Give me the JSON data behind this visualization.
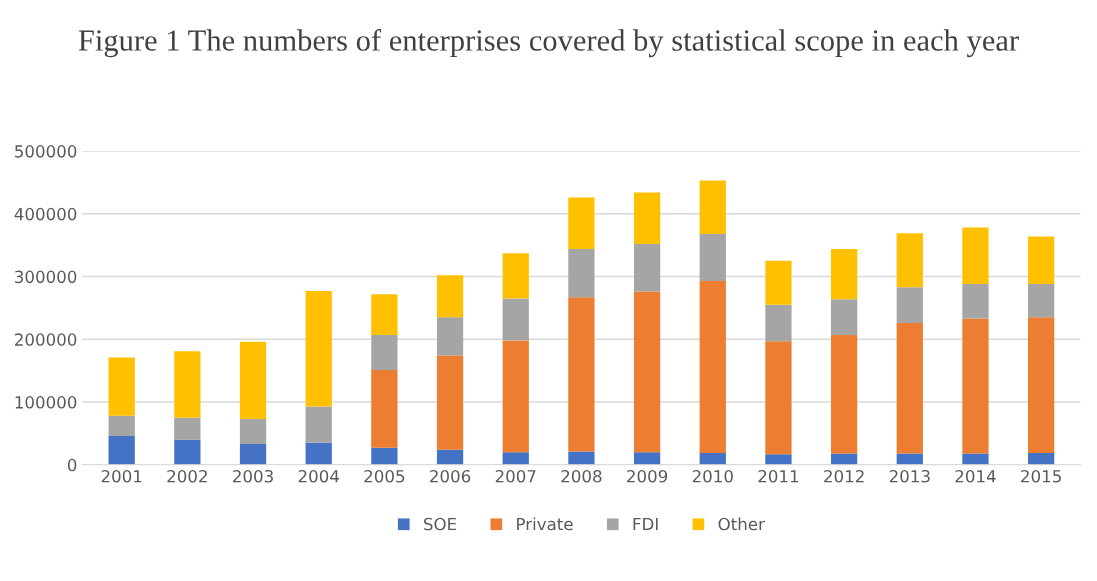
{
  "chart_data": {
    "type": "bar",
    "title": "Figure 1 The numbers of enterprises covered by statistical scope in each year",
    "categories": [
      "2001",
      "2002",
      "2003",
      "2004",
      "2005",
      "2006",
      "2007",
      "2008",
      "2009",
      "2010",
      "2011",
      "2012",
      "2013",
      "2014",
      "2015"
    ],
    "stacked": true,
    "series": [
      {
        "name": "SOE",
        "color": "#4472c4",
        "values": [
          46000,
          40000,
          33000,
          35000,
          27000,
          24000,
          20000,
          21000,
          20000,
          19000,
          17000,
          18000,
          18000,
          18000,
          19000
        ]
      },
      {
        "name": "Private",
        "color": "#ed7d31",
        "values": [
          null,
          null,
          null,
          null,
          124000,
          150000,
          178000,
          246000,
          256000,
          274000,
          180000,
          189000,
          208000,
          215000,
          216000
        ]
      },
      {
        "name": "FDI",
        "color": "#a5a5a5",
        "values": [
          32000,
          35000,
          40000,
          58000,
          56000,
          61000,
          67000,
          77000,
          76000,
          75000,
          58000,
          57000,
          57000,
          55000,
          53000
        ]
      },
      {
        "name": "Other",
        "color": "#ffc000",
        "values": [
          93000,
          106000,
          123000,
          184000,
          65000,
          67000,
          72000,
          82000,
          82000,
          85000,
          70000,
          80000,
          86000,
          90000,
          76000
        ]
      }
    ],
    "ylim": [
      0,
      500000
    ],
    "yticks": [
      0,
      100000,
      200000,
      300000,
      400000,
      500000
    ],
    "grid": "y",
    "legend": "bottom"
  }
}
